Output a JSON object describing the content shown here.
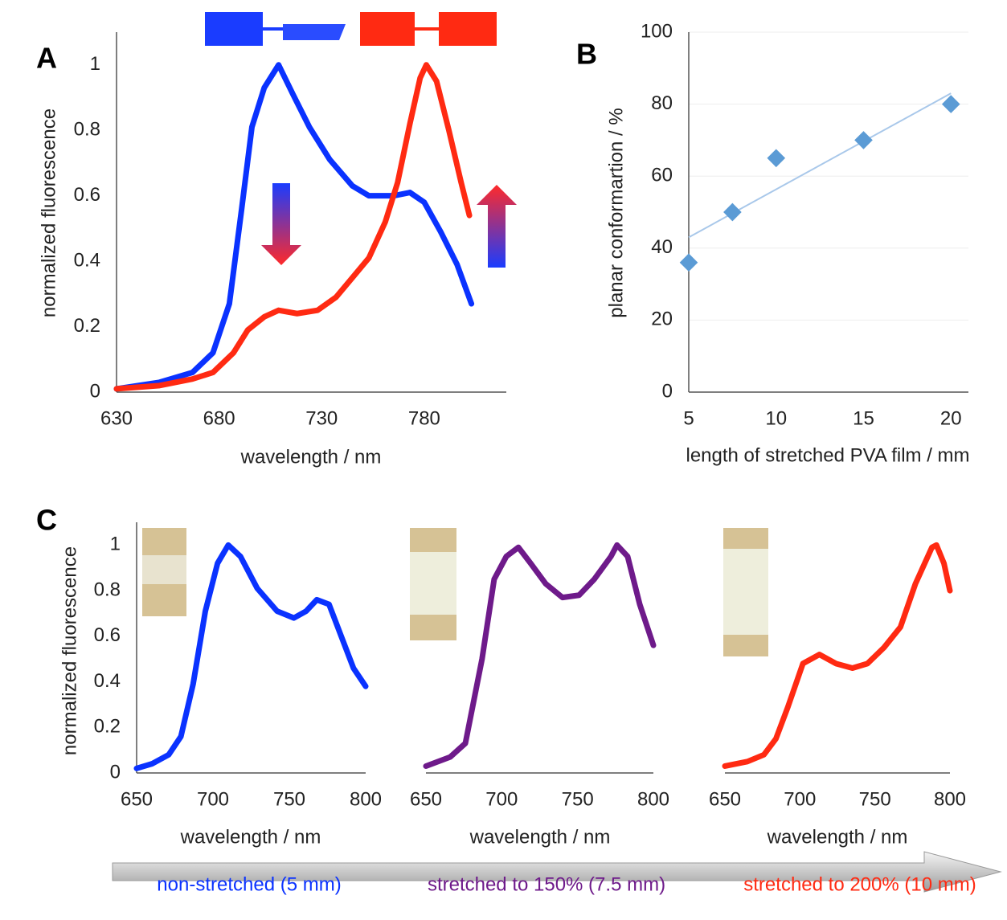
{
  "chart_data": [
    {
      "type": "line",
      "label": "A",
      "xlabel": "wavelength / nm",
      "ylabel": "normalized fluorescence",
      "xlim": [
        630,
        820
      ],
      "xticks": [
        630,
        680,
        730,
        780
      ],
      "ylim": [
        0,
        1.1
      ],
      "yticks": [
        0,
        0.2,
        0.4,
        0.6,
        0.8,
        1
      ],
      "series": [
        {
          "color": "#0a32ff",
          "x": [
            630,
            651,
            667,
            677,
            685,
            691,
            696,
            702,
            709,
            716,
            724,
            734,
            745,
            753,
            765,
            773,
            780,
            788,
            796,
            803
          ],
          "values": [
            0.01,
            0.03,
            0.06,
            0.12,
            0.27,
            0.56,
            0.81,
            0.93,
            1.0,
            0.91,
            0.81,
            0.71,
            0.63,
            0.6,
            0.6,
            0.61,
            0.58,
            0.49,
            0.39,
            0.27
          ]
        },
        {
          "color": "#ff2a12",
          "x": [
            630,
            651,
            667,
            677,
            687,
            694,
            702,
            709,
            718,
            728,
            737,
            745,
            753,
            761,
            767,
            773,
            778,
            781,
            786,
            792,
            798,
            802
          ],
          "values": [
            0.01,
            0.02,
            0.04,
            0.06,
            0.12,
            0.19,
            0.23,
            0.25,
            0.24,
            0.25,
            0.29,
            0.35,
            0.41,
            0.52,
            0.64,
            0.82,
            0.96,
            1.0,
            0.95,
            0.8,
            0.64,
            0.54
          ]
        }
      ]
    },
    {
      "type": "scatter",
      "label": "B",
      "xlabel": "length of stretched PVA film / mm",
      "ylabel": "planar conformartion / %",
      "xlim": [
        5,
        21
      ],
      "xticks": [
        5,
        10,
        15,
        20
      ],
      "ylim": [
        0,
        100
      ],
      "yticks": [
        0,
        20,
        40,
        60,
        80,
        100
      ],
      "grid": true,
      "color": "#5b9bd5",
      "x": [
        5,
        7.5,
        10,
        15,
        20
      ],
      "values": [
        36,
        50,
        65,
        70,
        80
      ],
      "trendline": {
        "color": "#a9c8ea",
        "x": [
          5,
          20
        ],
        "values": [
          43,
          83
        ]
      }
    },
    {
      "type": "line",
      "label": "C",
      "xlabel": "wavelength / nm",
      "ylabel": "normalized fluorescence",
      "caption": "non-stretched (5 mm)",
      "xlim": [
        650,
        800
      ],
      "xticks": [
        650,
        700,
        750,
        800
      ],
      "ylim": [
        0,
        1.1
      ],
      "yticks": [
        0,
        0.2,
        0.4,
        0.6,
        0.8,
        1
      ],
      "series": [
        {
          "color": "#0a32ff",
          "x": [
            650,
            660,
            671,
            679,
            687,
            695,
            703,
            710,
            718,
            729,
            742,
            753,
            761,
            768,
            776,
            784,
            792,
            800
          ],
          "values": [
            0.02,
            0.04,
            0.08,
            0.16,
            0.39,
            0.71,
            0.92,
            1.0,
            0.95,
            0.81,
            0.71,
            0.68,
            0.71,
            0.76,
            0.74,
            0.6,
            0.46,
            0.38
          ]
        }
      ]
    },
    {
      "type": "line",
      "xlabel": "wavelength / nm",
      "caption": "stretched to 150% (7.5 mm)",
      "xlim": [
        650,
        800
      ],
      "xticks": [
        650,
        700,
        750,
        800
      ],
      "ylim": [
        0,
        1.1
      ],
      "series": [
        {
          "color": "#6e1a8a",
          "x": [
            650,
            666,
            676,
            687,
            695,
            703,
            711,
            719,
            729,
            740,
            751,
            761,
            772,
            776,
            783,
            791,
            800
          ],
          "values": [
            0.03,
            0.07,
            0.13,
            0.5,
            0.85,
            0.95,
            0.99,
            0.92,
            0.83,
            0.77,
            0.78,
            0.85,
            0.95,
            1.0,
            0.95,
            0.74,
            0.56
          ]
        }
      ]
    },
    {
      "type": "line",
      "xlabel": "wavelength / nm",
      "caption": "stretched to 200% (10 mm)",
      "xlim": [
        650,
        800
      ],
      "xticks": [
        650,
        700,
        750,
        800
      ],
      "ylim": [
        0,
        1.1
      ],
      "series": [
        {
          "color": "#ff2a12",
          "x": [
            650,
            665,
            676,
            684,
            692,
            702,
            713,
            724,
            735,
            745,
            756,
            767,
            777,
            788,
            791,
            796,
            800
          ],
          "values": [
            0.03,
            0.05,
            0.08,
            0.15,
            0.29,
            0.48,
            0.52,
            0.48,
            0.46,
            0.48,
            0.55,
            0.64,
            0.83,
            0.99,
            1.0,
            0.92,
            0.8
          ]
        }
      ]
    }
  ]
}
